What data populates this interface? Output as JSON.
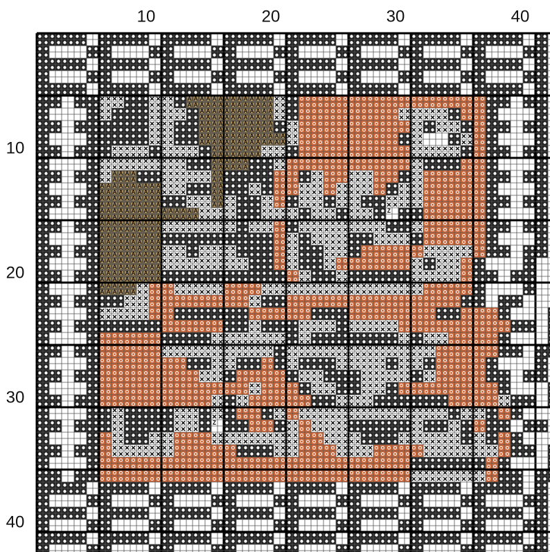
{
  "column_labels": [
    "10",
    "20",
    "30",
    "40"
  ],
  "row_labels": [
    "10",
    "20",
    "30",
    "40"
  ],
  "symbols": {
    "a": "A",
    "z": "Z"
  },
  "cells": [
    "ddddwddddwddddwddddwddddwddddwddddwddddwd",
    "dwwwddwwwddwwwddwwwddwwwddwwwddwwwddwwwdd",
    "ddddwddddwddddwddddwddddwddddwddddwddddwd",
    "dwwwddwwwddwwwddwwwddwwwddwwwddwwwddwwwdd",
    "ddddwddddwddddwddddwddddwddddwddddwddddwd",
    "ddwddxxddxxdaaaaaaaxdoooooooooooooooddwdd",
    "dwwwdxdddxxxdaaaaaaxdooooooooxxxxdoodwwwd",
    "ddwddddddxxddaaaaaadxoooooooooxdxxdoddwdd",
    "dwwwdddddxxddaaaaaaaxoooooooodxwwdxodwwwd",
    "ddwdddxxxdxxxdaaaaxxdoooooooooxxxxdoddwdd",
    "dwwwdxxxxxxxddaaaddxooooooooooxdddoodwwwd",
    "ddwddxaaddxxxxaddddoodxooxxoodxoooooddwdd",
    "dwwwdaaaaaxxddaddxdooxxoxxxodxxooooodwwwd",
    "ddwddaaaaaddxxaxddxodxxdxxddxxxoooooddwdd",
    "dwwwdaaaaaaaaxxxddxxxdxxdxxdzddooooodwwwd",
    "ddwddaaaaaxxxxxxdxxodxxxxxxxddxoooooddwdd",
    "dwwwdaaaaadddddddddoxdxxxddxxxdooooodwwwd",
    "ddwddaaaaaxxdxxxdddoxddxxdoooooxxxxoddwdd",
    "dwwwdaaaaaxxxxxxxddoxddxooooooxdxxodwwwd",
    "ddwddaaaaaddddddddddoxddxdddddxxxxoddwdd",
    "dwwwdaaaxooxxxxoooxxxxxxxxxxxxxoooodwwwd",
    "ddwddddxxooooooooxddooooooooooooooddwdd",
    "dwwwdxxxxooddddddooooodddoooooooddooodwwwd",
    "ddwdddddddoooooddxdddxxxdxxxxoooooooooddwdd",
    "dwwwdoooooddddxxxxxxdxdddddddxdxxoooodwwwd",
    "ddwddoooooxxxxxxxxxdxxxxxxxxxxxxoooooddwdd",
    "dwwwdoooooooddxxddodxdddxxxxdxxdoooodwwwd",
    "ddwddooooooooxxdoooodxxdddxxxxdxooooddwdd",
    "dwwwdooooooooooooxooodxxddxxdoooooooodwwwd",
    "ddwddoooooooooxdxoooooddxxxddddddooooxddwdd",
    "dwwwddxddddxxdxdoodxoxxxxxxxxxxxxdxxdodwwwd",
    "ddwdddxddddxxdzddoodxoxxxdddddxddxdoddwdd",
    "dwwwdoxddxxoooxxxxxxxooxxxdddxxxxxdxdodwwwd",
    "ddwddoxxxxxooooodddxxoooxxxooooxxxxxxoddwdd",
    "dwwwdoooooooooooooooooooooooooddddddodwwwd",
    "ddwddoooooooooooooooooooooooooxxxxxxoddwdd",
    "ddddwddddwddddwddddwddddwddddwddddwddddwd",
    "dwwwddwwwddwwwddwwwddwwwddwwwddwwwddwwwdd",
    "ddddwddddwddddwddddwddddwddddwddddwddddwd",
    "dwwwddwwwddwwwddwwwddwwwddwwwddwwwddwwwdd",
    "ddddwddddwddddwddddwddddwddddwddddwddddwd",
    "dwwwddwwwddwwwddwwwddwwwddwwwddwwwddwwwdd"
  ]
}
